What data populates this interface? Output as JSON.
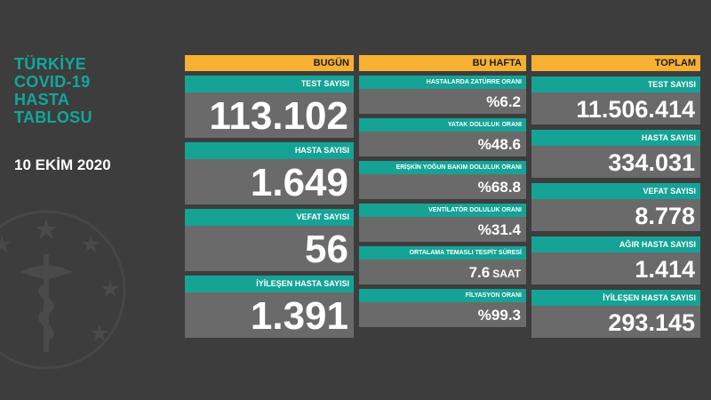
{
  "title_lines": [
    "TÜRKİYE",
    "COVID-19",
    "HASTA",
    "TABLOSU"
  ],
  "date": "10 EKİM 2020",
  "colors": {
    "background": "#3d3d3d",
    "header": "#f6b133",
    "label": "#15a396",
    "value_box": "#6a6a6a",
    "title": "#0fa89c"
  },
  "today": {
    "header": "BUGÜN",
    "cards": [
      {
        "label": "TEST SAYISI",
        "value": "113.102"
      },
      {
        "label": "HASTA SAYISI",
        "value": "1.649"
      },
      {
        "label": "VEFAT SAYISI",
        "value": "56"
      },
      {
        "label": "İYİLEŞEN HASTA SAYISI",
        "value": "1.391"
      }
    ]
  },
  "this_week": {
    "header": "BU HAFTA",
    "cards": [
      {
        "label": "HASTALARDA ZATÜRRE ORANI",
        "value": "%6.2"
      },
      {
        "label": "YATAK DOLULUK ORANI",
        "value": "%48.6"
      },
      {
        "label": "ERİŞKİN YOĞUN BAKIM DOLULUK ORANI",
        "value": "%68.8"
      },
      {
        "label": "VENTİLATÖR DOLULUK ORANI",
        "value": "%31.4"
      },
      {
        "label": "ORTALAMA TEMASLI TESPİT SÜRESİ",
        "value": "7.6",
        "unit": "SAAT"
      },
      {
        "label": "FİLYASYON ORANI",
        "value": "%99.3"
      }
    ]
  },
  "total": {
    "header": "TOPLAM",
    "cards": [
      {
        "label": "TEST SAYISI",
        "value": "11.506.414"
      },
      {
        "label": "HASTA SAYISI",
        "value": "334.031"
      },
      {
        "label": "VEFAT SAYISI",
        "value": "8.778"
      },
      {
        "label": "AĞIR HASTA SAYISI",
        "value": "1.414"
      },
      {
        "label": "İYİLEŞEN HASTA SAYISI",
        "value": "293.145"
      }
    ]
  },
  "emblem_icon": "ministry-of-health-emblem-icon"
}
